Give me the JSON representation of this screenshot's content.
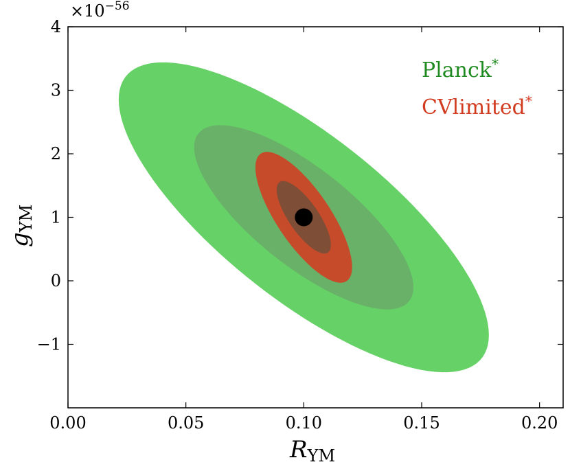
{
  "chart_data": {
    "type": "scatter",
    "title": "",
    "xlabel": {
      "main": "R",
      "sub": "YM"
    },
    "ylabel": {
      "main": "g",
      "sub": "YM"
    },
    "xlim": [
      0.0,
      0.21
    ],
    "ylim": [
      -2.0,
      4.0
    ],
    "x_ticks": [
      {
        "value": 0.0,
        "label": "0.00"
      },
      {
        "value": 0.05,
        "label": "0.05"
      },
      {
        "value": 0.1,
        "label": "0.10"
      },
      {
        "value": 0.15,
        "label": "0.15"
      },
      {
        "value": 0.2,
        "label": "0.20"
      }
    ],
    "y_ticks": [
      {
        "value": -1,
        "label": "−1"
      },
      {
        "value": 0,
        "label": "0"
      },
      {
        "value": 1,
        "label": "1"
      },
      {
        "value": 2,
        "label": "2"
      },
      {
        "value": 3,
        "label": "3"
      },
      {
        "value": 4,
        "label": "4"
      }
    ],
    "y_multiplier": {
      "base": "×10",
      "exponent": "−56"
    },
    "grid": false,
    "legend_position": "top-right",
    "fiducial_point": {
      "name": "fiducial",
      "x": 0.1,
      "y": 1.0,
      "color": "#000000"
    },
    "series": [
      {
        "name": "Planck*",
        "legend_label": "Planck",
        "legend_sup": "*",
        "color": "#1f8a1f",
        "contours": [
          {
            "level": "2-sigma",
            "center": [
              0.1,
              1.0
            ],
            "extreme_x": [
              0.0215,
              0.1785
            ],
            "extreme_y": [
              -1.44,
              3.44
            ],
            "fill": "#66d166"
          },
          {
            "level": "1-sigma",
            "center": [
              0.1,
              1.0
            ],
            "extreme_x": [
              0.0535,
              0.1465
            ],
            "extreme_y": [
              -0.45,
              2.45
            ],
            "fill": "#69b069"
          }
        ]
      },
      {
        "name": "CVlimited*",
        "legend_label": "CVlimited",
        "legend_sup": "*",
        "color": "#d13b1f",
        "contours": [
          {
            "level": "2-sigma",
            "center": [
              0.1,
              1.0
            ],
            "extreme_x": [
              0.0795,
              0.1205
            ],
            "extreme_y": [
              -0.03,
              2.03
            ],
            "fill": "#c64b2a"
          },
          {
            "level": "1-sigma",
            "center": [
              0.1,
              1.0
            ],
            "extreme_x": [
              0.0885,
              0.1115
            ],
            "extreme_y": [
              0.43,
              1.57
            ],
            "fill": "#7e4e36"
          }
        ]
      }
    ]
  }
}
